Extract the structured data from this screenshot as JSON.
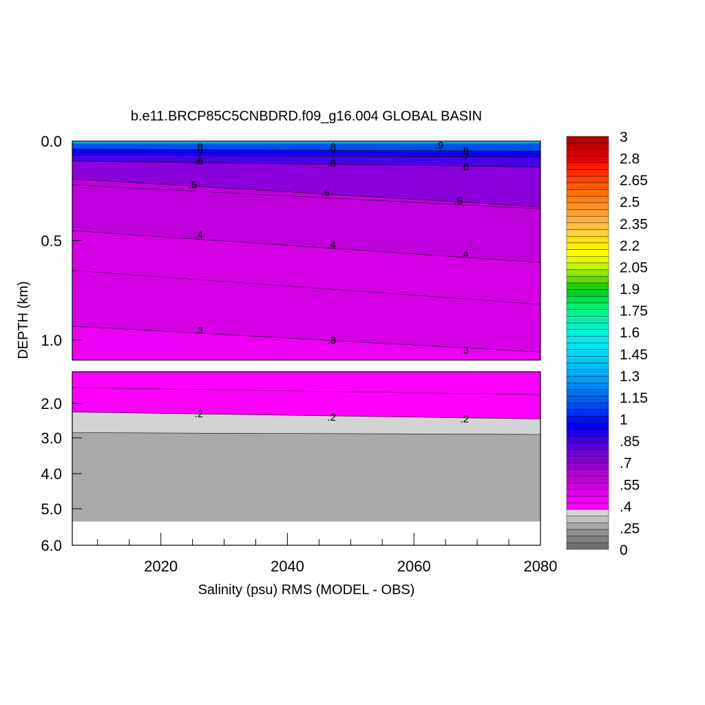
{
  "chart_data": {
    "type": "heatmap",
    "title": "b.e11.BRCP85C5CNBDRD.f09_g16.004 GLOBAL BASIN",
    "xlabel": "Salinity (psu) RMS (MODEL - OBS)",
    "ylabel": "DEPTH (km)",
    "x_range": [
      2006,
      2080
    ],
    "x_ticks": [
      2020,
      2040,
      2060,
      2080
    ],
    "x_tick_labels": [
      "2020",
      "2040",
      "2060",
      "2080"
    ],
    "upper_panel": {
      "y_range": [
        0.0,
        1.1
      ],
      "y_ticks": [
        0.0,
        0.5,
        1.0
      ],
      "y_tick_labels": [
        "0.0",
        "0.5",
        "1.0"
      ]
    },
    "lower_panel": {
      "y_range": [
        1.1,
        6.0
      ],
      "y_ticks": [
        2.0,
        3.0,
        4.0,
        5.0,
        6.0
      ],
      "y_tick_labels": [
        "2.0",
        "3.0",
        "4.0",
        "5.0",
        "6.0"
      ],
      "ocean_floor_depth": 5.35
    },
    "contour_levels": [
      0.2,
      0.3,
      0.4,
      0.5,
      0.6,
      0.7,
      0.8,
      0.9
    ],
    "contour_label_texts": [
      ".2",
      ".3",
      ".4",
      ".5",
      ".6",
      ".7",
      ".8",
      ".9"
    ],
    "contour_depths": {
      "0.9": [
        [
          2006,
          0.01
        ],
        [
          2080,
          0.01
        ]
      ],
      "0.8": [
        [
          2006,
          0.04
        ],
        [
          2080,
          0.05
        ]
      ],
      "0.7": [
        [
          2006,
          0.07
        ],
        [
          2080,
          0.08
        ]
      ],
      "0.6": [
        [
          2006,
          0.1
        ],
        [
          2080,
          0.13
        ]
      ],
      "0.5": [
        [
          2006,
          0.19
        ],
        [
          2080,
          0.33
        ]
      ],
      "0.4": [
        [
          2006,
          0.45
        ],
        [
          2080,
          0.61
        ]
      ],
      "0.3": [
        [
          2006,
          0.93
        ],
        [
          2080,
          1.06
        ]
      ],
      "0.2": [
        [
          2006,
          2.25
        ],
        [
          2080,
          2.45
        ]
      ],
      "0.15": [
        [
          2006,
          2.85
        ],
        [
          2080,
          2.9
        ]
      ]
    },
    "contour_labels": [
      {
        "text": ".8",
        "x": 2026,
        "depth": 0.03
      },
      {
        "text": ".7",
        "x": 2026,
        "depth": 0.06
      },
      {
        "text": ".6",
        "x": 2026,
        "depth": 0.1
      },
      {
        "text": ".5",
        "x": 2025,
        "depth": 0.22
      },
      {
        "text": ".4",
        "x": 2026,
        "depth": 0.47
      },
      {
        "text": ".3",
        "x": 2026,
        "depth": 0.95
      },
      {
        "text": ".2",
        "x": 2026,
        "depth": 2.3
      },
      {
        "text": ".8",
        "x": 2047,
        "depth": 0.03
      },
      {
        "text": ".7",
        "x": 2047,
        "depth": 0.06
      },
      {
        "text": ".6",
        "x": 2047,
        "depth": 0.11
      },
      {
        "text": ".5",
        "x": 2046,
        "depth": 0.26
      },
      {
        "text": ".4",
        "x": 2047,
        "depth": 0.52
      },
      {
        "text": ".3",
        "x": 2047,
        "depth": 1.0
      },
      {
        "text": ".2",
        "x": 2047,
        "depth": 2.4
      },
      {
        "text": ".9",
        "x": 2064,
        "depth": 0.02
      },
      {
        "text": ".8",
        "x": 2068,
        "depth": 0.05
      },
      {
        "text": ".7",
        "x": 2068,
        "depth": 0.08
      },
      {
        "text": ".6",
        "x": 2068,
        "depth": 0.13
      },
      {
        "text": ".5",
        "x": 2067,
        "depth": 0.3
      },
      {
        "text": ".4",
        "x": 2068,
        "depth": 0.57
      },
      {
        "text": ".3",
        "x": 2068,
        "depth": 1.05
      },
      {
        "text": ".2",
        "x": 2068,
        "depth": 2.45
      }
    ],
    "colorbar": {
      "labels": [
        "3",
        "2.8",
        "2.65",
        "2.5",
        "2.35",
        "2.2",
        "2.05",
        "1.9",
        "1.75",
        "1.6",
        "1.45",
        "1.3",
        "1.15",
        "1",
        ".85",
        ".7",
        ".55",
        ".4",
        ".25",
        "0"
      ],
      "bands_bottom_to_top": [
        "#707070",
        "#808080",
        "#909090",
        "#a8a8a8",
        "#c0c0c0",
        "#d4d4d4",
        "#ff00ff",
        "#f000f4",
        "#e000ea",
        "#d000e0",
        "#c000d8",
        "#b000d4",
        "#9a00d0",
        "#8600d4",
        "#7000d8",
        "#5800dc",
        "#4000e4",
        "#2000ec",
        "#0000f0",
        "#0014f4",
        "#0030f4",
        "#0048f4",
        "#0060f4",
        "#0074f4",
        "#0088f4",
        "#009cf4",
        "#00aef4",
        "#00bef4",
        "#00ccf4",
        "#00d8f4",
        "#00e4f4",
        "#00ecec",
        "#00f0d8",
        "#00f4c0",
        "#00f4a8",
        "#00f490",
        "#00f070",
        "#00e048",
        "#00d020",
        "#20d000",
        "#60dc00",
        "#90e800",
        "#c0f400",
        "#e8f800",
        "#ffff00",
        "#fff000",
        "#ffe000",
        "#ffd040",
        "#ffc040",
        "#ffb040",
        "#ffa030",
        "#ff9020",
        "#ff8010",
        "#ff7000",
        "#ff5a00",
        "#ff4400",
        "#ff2e00",
        "#ff1800",
        "#f00000",
        "#d80000",
        "#c00000",
        "#b00000"
      ]
    },
    "colors": {
      "grey_deep": "#aaaaaa",
      "grey_light": "#d3d3d3",
      "magenta": "#ff00ff",
      "contour_line": "#000000"
    }
  }
}
